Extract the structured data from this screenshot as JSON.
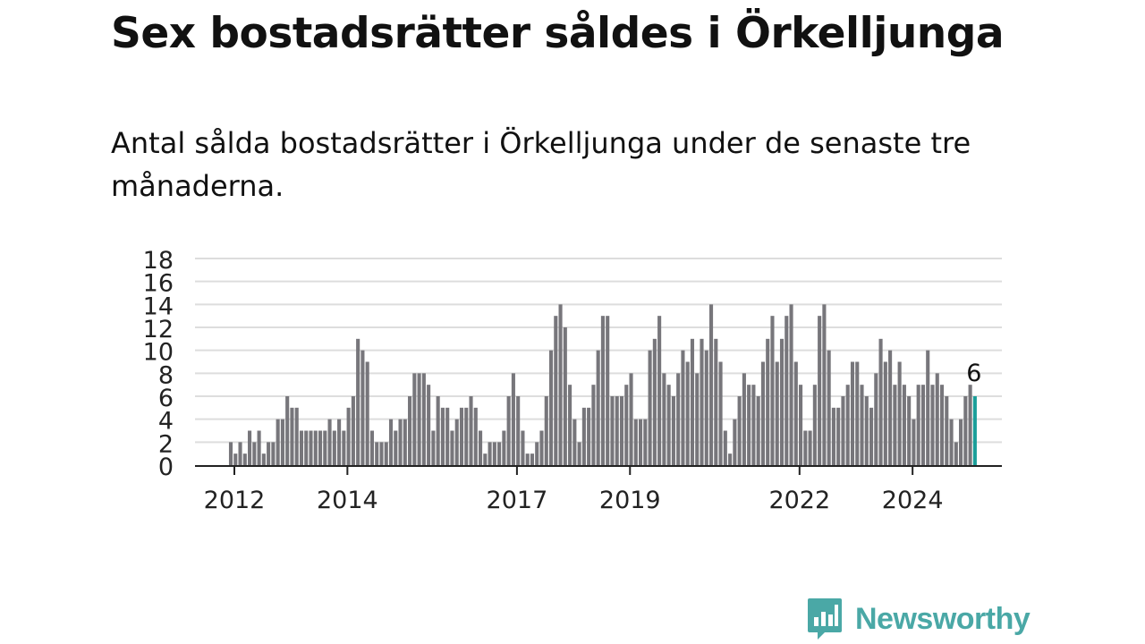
{
  "title": "Sex bostadsrätter såldes i Örkelljunga",
  "subtitle": "Antal sålda bostadsrätter i Örkelljunga under de senaste tre månaderna.",
  "brand": {
    "name": "Newsworthy",
    "color": "#4aa8a6"
  },
  "colors": {
    "bar": "#77767b",
    "highlight": "#1a9e99",
    "grid": "#dddddd",
    "axis": "#222222"
  },
  "chart_data": {
    "type": "bar",
    "ylim": [
      0,
      18
    ],
    "yticks": [
      0,
      2,
      4,
      6,
      8,
      10,
      12,
      14,
      16,
      18
    ],
    "grid": true,
    "x_tick_labels": [
      "2012",
      "2014",
      "2017",
      "2019",
      "2022",
      "2024"
    ],
    "x_tick_indices": [
      0,
      24,
      60,
      84,
      120,
      144
    ],
    "start_month": "2012-01",
    "values": [
      2,
      1,
      2,
      1,
      3,
      2,
      3,
      1,
      2,
      2,
      4,
      4,
      6,
      5,
      5,
      3,
      3,
      3,
      3,
      3,
      3,
      4,
      3,
      4,
      3,
      5,
      6,
      11,
      10,
      9,
      3,
      2,
      2,
      2,
      4,
      3,
      4,
      4,
      6,
      8,
      8,
      8,
      7,
      3,
      6,
      5,
      5,
      3,
      4,
      5,
      5,
      6,
      5,
      3,
      1,
      2,
      2,
      2,
      3,
      6,
      8,
      6,
      3,
      1,
      1,
      2,
      3,
      6,
      10,
      13,
      14,
      12,
      7,
      4,
      2,
      5,
      5,
      7,
      10,
      13,
      13,
      6,
      6,
      6,
      7,
      8,
      4,
      4,
      4,
      10,
      11,
      13,
      8,
      7,
      6,
      8,
      10,
      9,
      11,
      8,
      11,
      10,
      14,
      11,
      9,
      3,
      1,
      4,
      6,
      8,
      7,
      7,
      6,
      9,
      11,
      13,
      9,
      11,
      13,
      14,
      9,
      7,
      3,
      3,
      7,
      13,
      14,
      10,
      5,
      5,
      6,
      7,
      9,
      9,
      7,
      6,
      5,
      8,
      11,
      9,
      10,
      7,
      9,
      7,
      6,
      4,
      7,
      7,
      10,
      7,
      8,
      7,
      6,
      4,
      2,
      4,
      6,
      7,
      6
    ],
    "highlight_label": "6"
  }
}
